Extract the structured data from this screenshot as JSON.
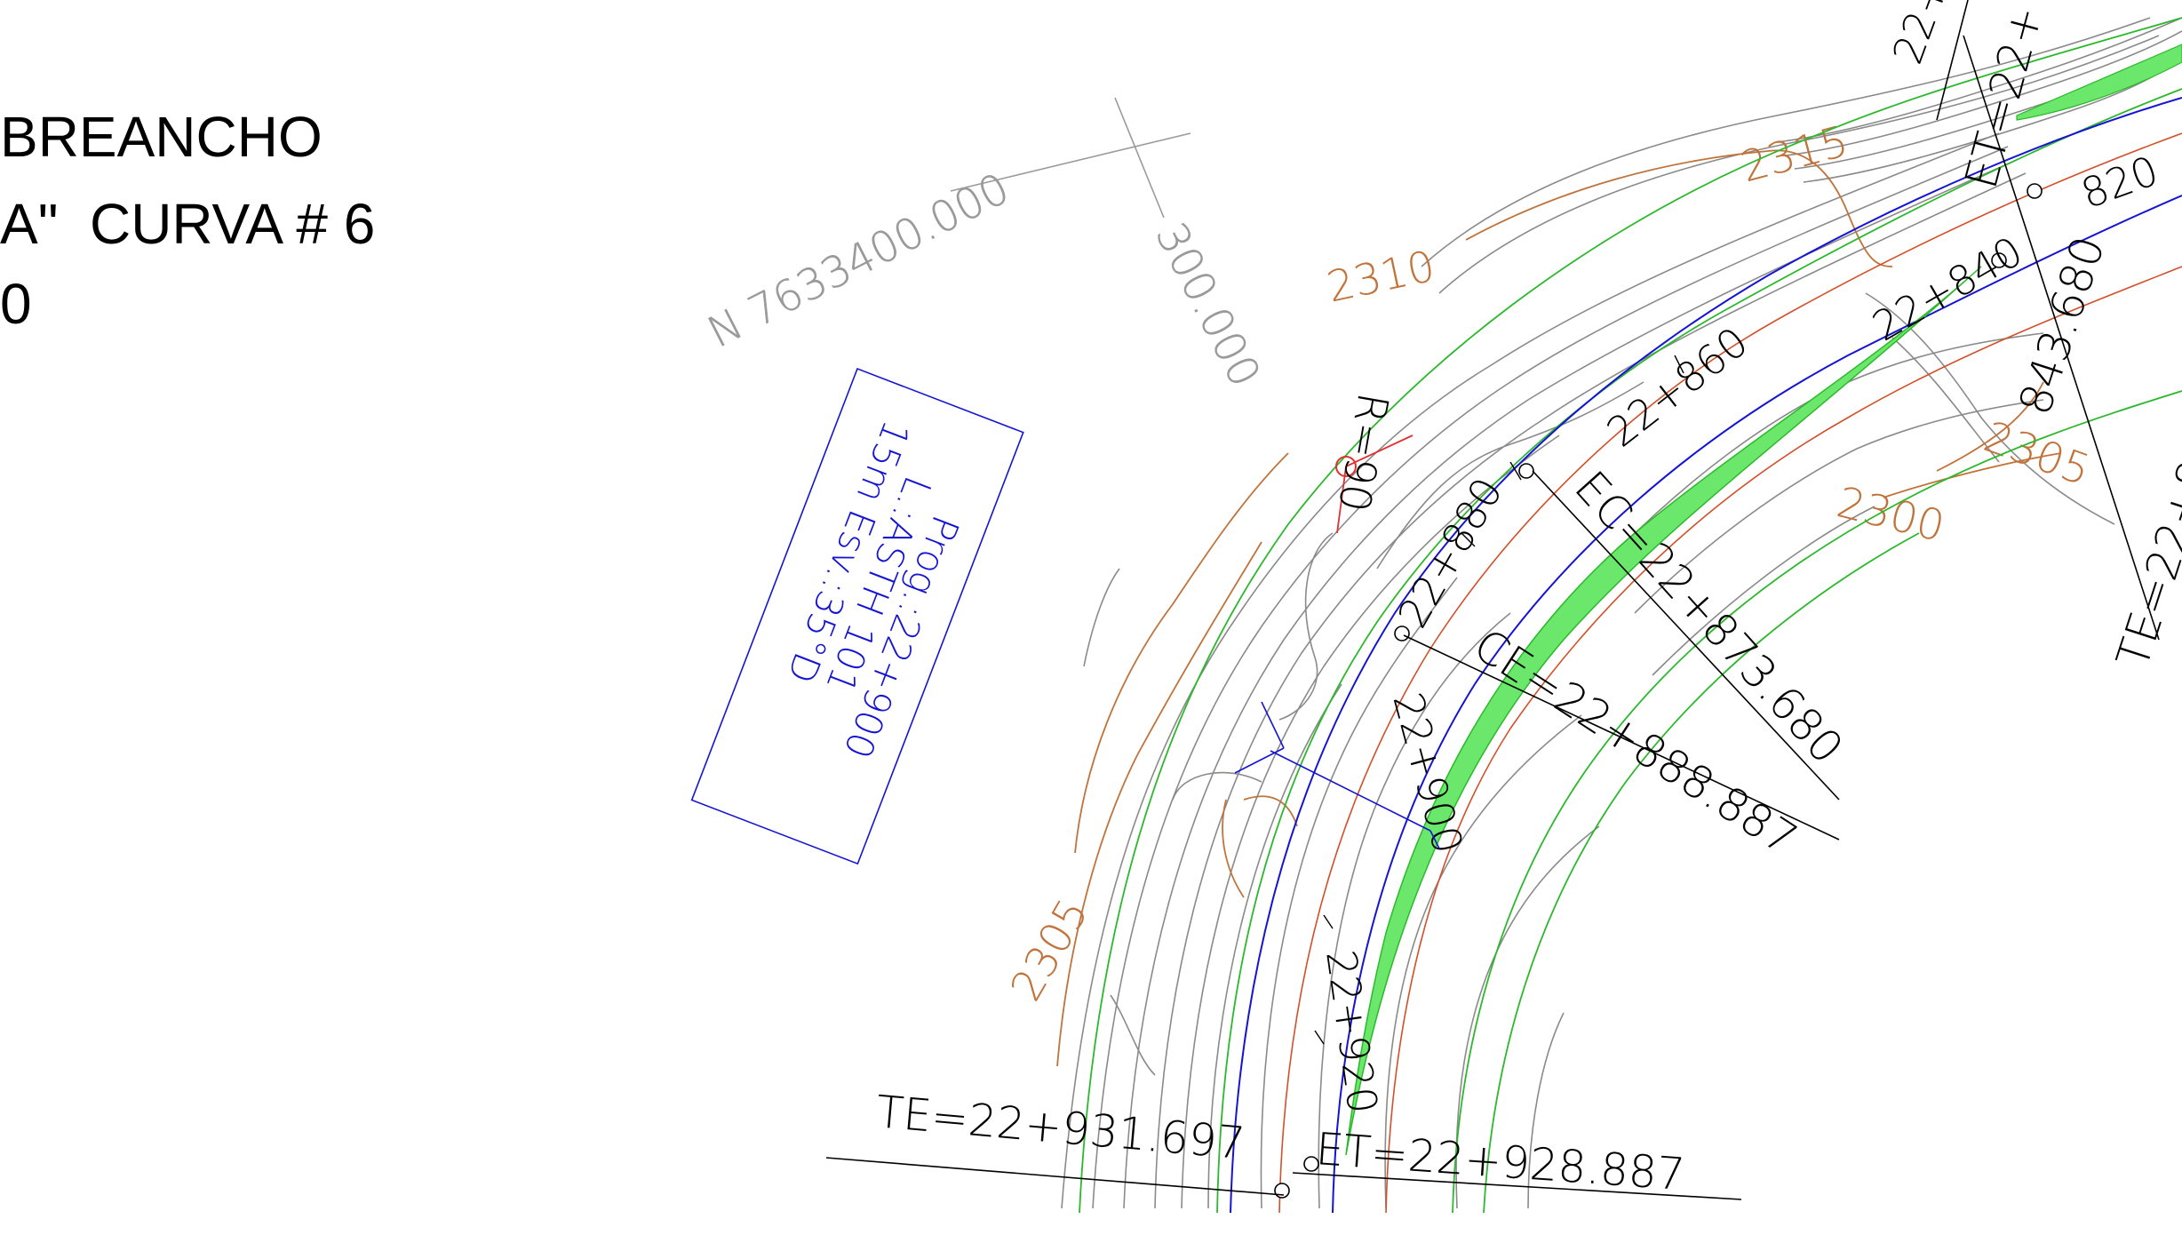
{
  "title_block": {
    "line1": "BREANCHO",
    "line2": "A\"  CURVA # 6",
    "line3": "0"
  },
  "colors": {
    "terrain": "#8a8a8a",
    "contour_major": "#c0733a",
    "alignment": "#1414d2",
    "road_edge": "#2cb82c",
    "shoulder": "#d2502a",
    "widening_fill": "#6be86b",
    "leader": "#000000",
    "pin": "#e03030"
  },
  "coordinate_label": {
    "north": "N 7633400.000",
    "east": "300.000"
  },
  "contour_labels": [
    "2315",
    "2310",
    "2305",
    "2300",
    "2305",
    "2305"
  ],
  "station_labels": [
    "22+860",
    "22+840",
    "22+880",
    "22+900",
    "22+920",
    "820",
    "22+"
  ],
  "curve_points": {
    "te_start": "TE=22+931.697",
    "et_start": "ET=22+928.887",
    "ce": "CE=22+888.887",
    "ec": "EC=22+873.680",
    "et_end": "ET=22+",
    "te_end": "TE=22+8",
    "te_end_station": "843.680"
  },
  "radius_label": "R=90",
  "section_box": {
    "line1": "Prog.:22+900",
    "line2": "L.:ASTH 101",
    "line3": "15m Esv.:35°D"
  }
}
